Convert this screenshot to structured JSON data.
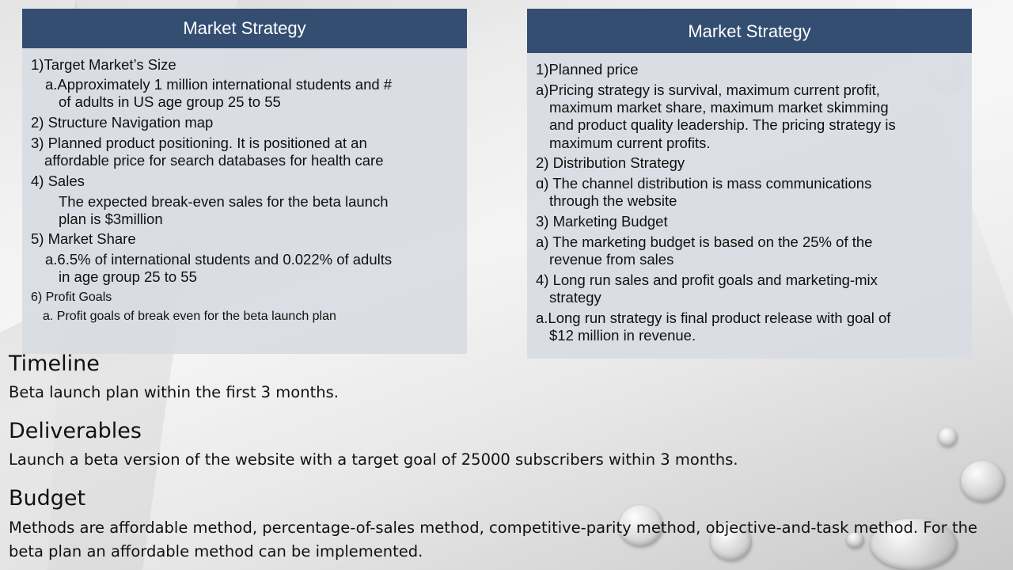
{
  "left_panel": {
    "title": "Market Strategy",
    "lines": [
      "1)Target Market’s Size",
      "a.Approximately  1 million  international  students  and  #",
      "of adults  in US age group  25 to 55",
      "2) Structure Navigation map",
      "3) Planned product positioning. It is positioned at an",
      "affordable price for search databases for health care",
      "4) Sales",
      "The expected break-even sales for the beta launch",
      "plan is $3million",
      "5) Market Share",
      "a.6.5% of international students and 0.022% of adults",
      "in age group  25 to 55",
      "6)  Profit Goals",
      "a.  Profit goals of break even for the beta launch plan"
    ]
  },
  "right_panel": {
    "title": "Market Strategy",
    "lines": [
      "1)Planned price",
      "a)Pricing strategy is survival, maximum  current profit,",
      "maximum  market share, maximum  market skimming",
      "and product quality leadership. The pricing strategy is",
      "maximum  current profits.",
      "2) Distribution Strategy",
      "ɑ) The channel distribution is mass communications",
      "through the website",
      "3) Marketing Budget",
      "a) The marketing budget is based on the 25% of the",
      "revenue from sales",
      "4) Long run sales and profit goals and marketing-mix",
      "strategy",
      "a.Long run strategy is final product release with goal of",
      "$12 million  in revenue."
    ]
  },
  "sections": [
    {
      "heading": "Timeline",
      "lines": [
        "Beta launch plan within the first 3 months."
      ]
    },
    {
      "heading": "Deliverables",
      "lines": [
        "Launch a beta version of the website with a target goal of 25000 subscribers within 3 months."
      ]
    },
    {
      "heading": "Budget",
      "lines": [
        "Methods are affordable method, percentage-of-sales method, competitive-parity method, objective-and-task method. For the",
        "beta plan an affordable method can be implemented."
      ]
    }
  ],
  "colors": {
    "header": "#344e72",
    "panel": "#d8dbe2"
  }
}
